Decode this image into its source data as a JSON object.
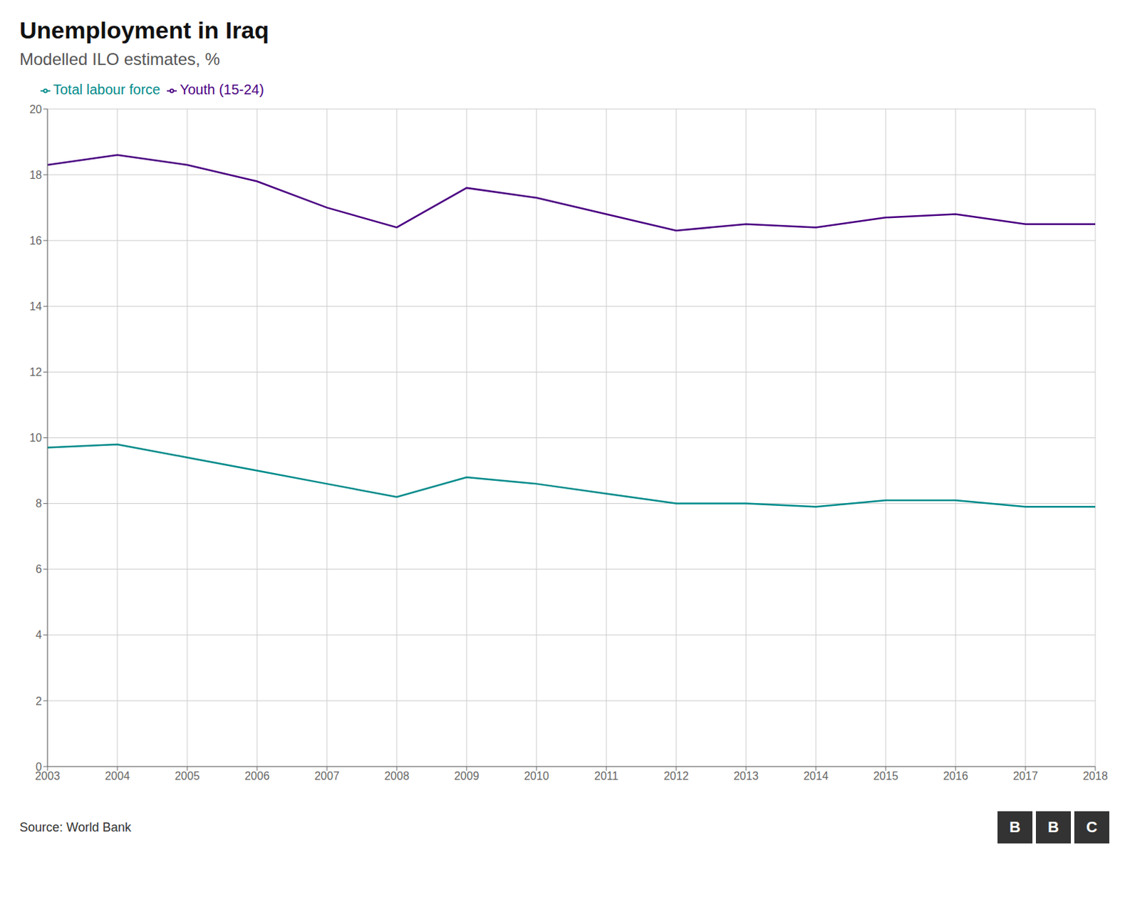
{
  "chart_data": {
    "type": "line",
    "title": "Unemployment in Iraq",
    "subtitle": "Modelled ILO estimates, %",
    "source": "Source: World Bank",
    "annotations": [
      "B",
      "B",
      "C"
    ],
    "x": [
      2003,
      2004,
      2005,
      2006,
      2007,
      2008,
      2009,
      2010,
      2011,
      2012,
      2013,
      2014,
      2015,
      2016,
      2017,
      2018
    ],
    "series": [
      {
        "name": "Total labour force",
        "color": "#008B8B",
        "values": [
          9.7,
          9.8,
          9.4,
          9.0,
          8.6,
          8.2,
          8.8,
          8.6,
          8.3,
          8.0,
          8.0,
          7.9,
          8.1,
          8.1,
          7.9,
          7.9
        ]
      },
      {
        "name": "Youth (15-24)",
        "color": "#4B0082",
        "values": [
          18.3,
          18.6,
          18.3,
          17.8,
          17.0,
          16.4,
          17.6,
          17.3,
          16.8,
          16.3,
          16.5,
          16.4,
          16.7,
          16.8,
          16.5,
          16.5
        ]
      }
    ],
    "xlim": [
      2003,
      2018
    ],
    "xticks": [
      2003,
      2004,
      2005,
      2006,
      2007,
      2008,
      2009,
      2010,
      2011,
      2012,
      2013,
      2014,
      2015,
      2016,
      2017,
      2018
    ],
    "ylim": [
      0,
      20
    ],
    "yticks": [
      0,
      2,
      4,
      6,
      8,
      10,
      12,
      14,
      16,
      18,
      20
    ],
    "grid": true,
    "legend": "upper left"
  }
}
